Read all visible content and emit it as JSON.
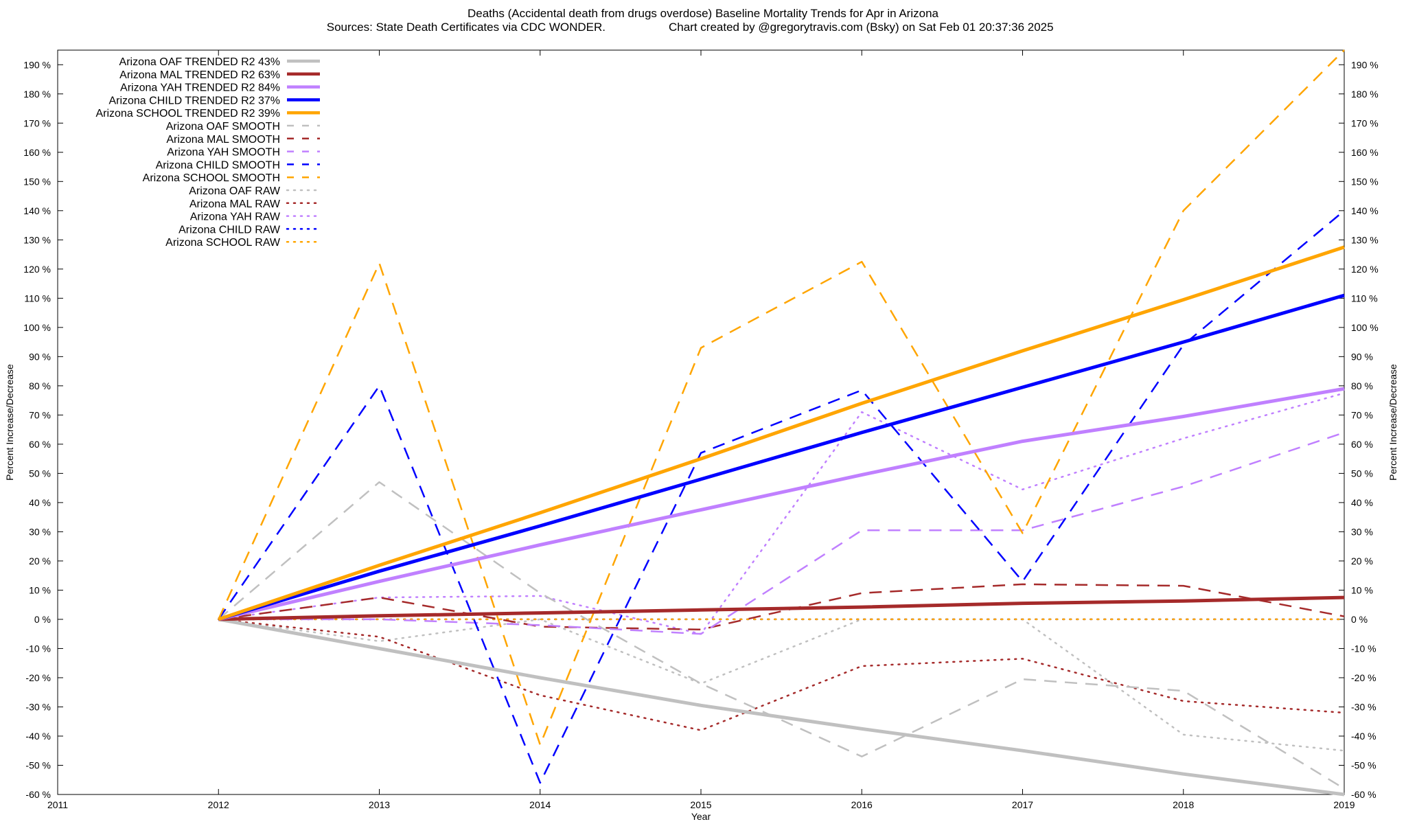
{
  "chart_data": {
    "type": "line",
    "title": "Deaths (Accidental death from drugs overdose)  Baseline Mortality Trends for Apr in Arizona",
    "subtitle_left": "Sources: State Death Certificates via CDC WONDER.",
    "subtitle_right": "Chart created by @gregorytravis.com (Bsky) on Sat Feb 01 20:37:36 2025",
    "xlabel": "Year",
    "ylabel_left": "Percent Increase/Decrease",
    "ylabel_right": "Percent Increase/Decrease",
    "xlim": [
      2011,
      2019
    ],
    "ylim": [
      -60,
      195
    ],
    "x_ticks": [
      2011,
      2012,
      2013,
      2014,
      2015,
      2016,
      2017,
      2018,
      2019
    ],
    "x_tick_labels": [
      "2011",
      "2012",
      "2013",
      "2014",
      "2015",
      "2016",
      "2017",
      "2018",
      "2019"
    ],
    "y_ticks": [
      -60,
      -50,
      -40,
      -30,
      -20,
      -10,
      0,
      10,
      20,
      30,
      40,
      50,
      60,
      70,
      80,
      90,
      100,
      110,
      120,
      130,
      140,
      150,
      160,
      170,
      180,
      190
    ],
    "y_tick_labels": [
      "-60 %",
      "-50 %",
      "-40 %",
      "-30 %",
      "-20 %",
      "-10 %",
      "0 %",
      "10 %",
      "20 %",
      "30 %",
      "40 %",
      "50 %",
      "60 %",
      "70 %",
      "80 %",
      "90 %",
      "100 %",
      "110 %",
      "120 %",
      "130 %",
      "140 %",
      "150 %",
      "160 %",
      "170 %",
      "180 %",
      "190 %"
    ],
    "grid": false,
    "legend_position": "top-left",
    "x": [
      2012,
      2013,
      2014,
      2015,
      2016,
      2017,
      2018,
      2019
    ],
    "series": [
      {
        "name": "Arizona OAF TRENDED R2  43%",
        "style": "solid",
        "color": "#c0c0c0",
        "values": [
          0,
          -10,
          -20,
          -29.5,
          -37.5,
          -45,
          -53,
          -60
        ]
      },
      {
        "name": "Arizona MAL TRENDED R2  63%",
        "style": "solid",
        "color": "#a52a2a",
        "values": [
          0,
          1.2,
          2.2,
          3.2,
          4.2,
          5.5,
          6.3,
          7.5
        ]
      },
      {
        "name": "Arizona YAH TRENDED R2  84%",
        "style": "solid",
        "color": "#c080ff",
        "values": [
          0,
          13,
          25.5,
          37.5,
          49.5,
          61,
          69.5,
          79
        ]
      },
      {
        "name": "Arizona CHILD TRENDED R2  37%",
        "style": "solid",
        "color": "#0000ff",
        "values": [
          0,
          16.5,
          32,
          48,
          64,
          79.5,
          95,
          111
        ]
      },
      {
        "name": "Arizona SCHOOL TRENDED R2  39%",
        "style": "solid",
        "color": "#ffa500",
        "values": [
          0,
          18.5,
          36.5,
          55,
          74,
          92,
          109.5,
          127.5
        ]
      },
      {
        "name": "Arizona OAF SMOOTH",
        "style": "dashed",
        "color": "#c0c0c0",
        "values": [
          0,
          47,
          9,
          -22,
          -47,
          -20.5,
          -24.5,
          -58
        ]
      },
      {
        "name": "Arizona MAL SMOOTH",
        "style": "dashed",
        "color": "#a52a2a",
        "values": [
          0,
          7.5,
          -2.5,
          -3.5,
          9,
          12,
          11.5,
          1
        ]
      },
      {
        "name": "Arizona YAH SMOOTH",
        "style": "dashed",
        "color": "#c080ff",
        "values": [
          0,
          0,
          -2,
          -5,
          30.5,
          30.5,
          45.5,
          64
        ]
      },
      {
        "name": "Arizona CHILD SMOOTH",
        "style": "dashed",
        "color": "#0000ff",
        "values": [
          0,
          80,
          -56,
          57,
          78.5,
          13,
          94,
          140
        ]
      },
      {
        "name": "Arizona SCHOOL SMOOTH",
        "style": "dashed",
        "color": "#ffa500",
        "values": [
          0,
          122,
          -43,
          93,
          122.5,
          29.5,
          140,
          195
        ]
      },
      {
        "name": "Arizona OAF RAW",
        "style": "dotted",
        "color": "#c0c0c0",
        "values": [
          0,
          -7.5,
          0,
          -22,
          0,
          0,
          -39.5,
          -45
        ]
      },
      {
        "name": "Arizona MAL RAW",
        "style": "dotted",
        "color": "#a52a2a",
        "values": [
          0,
          -6,
          -26,
          -38,
          -16,
          -13.5,
          -28,
          -32
        ]
      },
      {
        "name": "Arizona YAH RAW",
        "style": "dotted",
        "color": "#c080ff",
        "values": [
          0,
          7.5,
          8,
          -5,
          71,
          44.5,
          62,
          77.5
        ]
      },
      {
        "name": "Arizona CHILD RAW",
        "style": "dotted",
        "color": "#0000ff",
        "values": [
          0,
          0,
          0,
          0,
          0,
          0,
          0,
          0
        ]
      },
      {
        "name": "Arizona SCHOOL RAW",
        "style": "dotted",
        "color": "#ffa500",
        "values": [
          0,
          0,
          0,
          0,
          0,
          0,
          0,
          0
        ]
      }
    ]
  }
}
